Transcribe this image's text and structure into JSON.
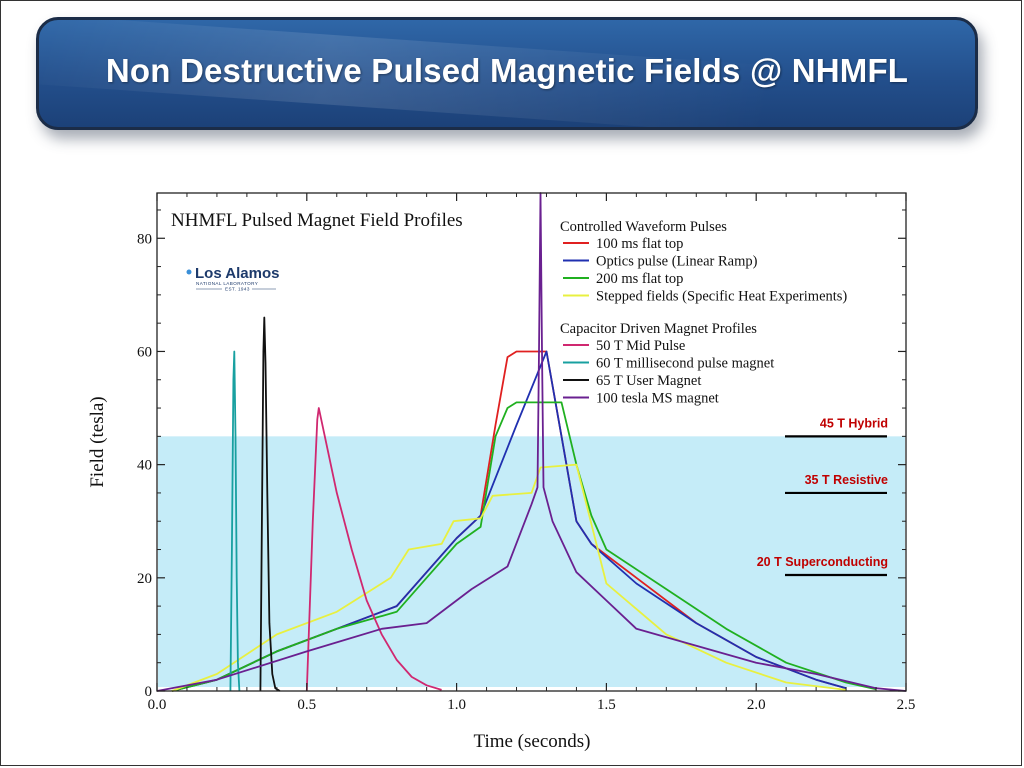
{
  "slide": {
    "title": "Non Destructive Pulsed Magnetic Fields @ NHMFL"
  },
  "logo": {
    "name": "Los Alamos",
    "subtitle": "NATIONAL LABORATORY",
    "est": "EST. 1943"
  },
  "colors": {
    "banner": "#2a5a9a",
    "shade": "#c5ecf8",
    "ref_label": "#c00000"
  },
  "chart_data": {
    "type": "line",
    "title": "NHMFL Pulsed Magnet Field Profiles",
    "xlabel": "Time (seconds)",
    "ylabel": "Field (tesla)",
    "xlim": [
      0.0,
      2.5
    ],
    "ylim": [
      0,
      88
    ],
    "xticks": [
      "0.0",
      "0.5",
      "1.0",
      "1.5",
      "2.0",
      "2.5"
    ],
    "yticks": [
      "0",
      "20",
      "40",
      "60",
      "80"
    ],
    "xtick_values": [
      0,
      0.5,
      1.0,
      1.5,
      2.0,
      2.5
    ],
    "ytick_values": [
      0,
      20,
      40,
      60,
      80
    ],
    "grid": false,
    "shaded_region": {
      "y_from": 0,
      "y_to": 45,
      "color": "#c5ecf8"
    },
    "legend_groups": [
      {
        "heading": "Controlled Waveform Pulses",
        "series_index": [
          0,
          1,
          2,
          3
        ]
      },
      {
        "heading": "Capacitor Driven Magnet Profiles",
        "series_index": [
          4,
          5,
          6,
          7
        ]
      }
    ],
    "series": [
      {
        "name": "100 ms flat top",
        "color": "#e02020",
        "points": [
          [
            0.05,
            0
          ],
          [
            0.2,
            2
          ],
          [
            0.4,
            7
          ],
          [
            0.6,
            11
          ],
          [
            0.8,
            15
          ],
          [
            0.9,
            21
          ],
          [
            1.0,
            27
          ],
          [
            1.08,
            31
          ],
          [
            1.13,
            47
          ],
          [
            1.17,
            59
          ],
          [
            1.2,
            60
          ],
          [
            1.3,
            60
          ],
          [
            1.35,
            45
          ],
          [
            1.4,
            30
          ],
          [
            1.45,
            26
          ],
          [
            1.6,
            20
          ],
          [
            1.8,
            12
          ],
          [
            2.0,
            6
          ],
          [
            2.2,
            2
          ],
          [
            2.3,
            0.5
          ]
        ]
      },
      {
        "name": "Optics pulse (Linear Ramp)",
        "color": "#2030b0",
        "points": [
          [
            0.05,
            0
          ],
          [
            0.2,
            2
          ],
          [
            0.4,
            7
          ],
          [
            0.6,
            11
          ],
          [
            0.8,
            15
          ],
          [
            0.9,
            21
          ],
          [
            1.0,
            27
          ],
          [
            1.08,
            31
          ],
          [
            1.2,
            47
          ],
          [
            1.3,
            60
          ],
          [
            1.35,
            45
          ],
          [
            1.4,
            30
          ],
          [
            1.45,
            26
          ],
          [
            1.6,
            19
          ],
          [
            1.8,
            12
          ],
          [
            2.0,
            6
          ],
          [
            2.2,
            2
          ],
          [
            2.3,
            0.5
          ]
        ]
      },
      {
        "name": "200 ms flat top",
        "color": "#20b020",
        "points": [
          [
            0.05,
            0
          ],
          [
            0.2,
            2
          ],
          [
            0.4,
            7
          ],
          [
            0.6,
            11
          ],
          [
            0.8,
            14
          ],
          [
            0.9,
            20
          ],
          [
            1.0,
            26
          ],
          [
            1.08,
            29
          ],
          [
            1.13,
            45
          ],
          [
            1.17,
            50
          ],
          [
            1.2,
            51
          ],
          [
            1.35,
            51
          ],
          [
            1.4,
            40
          ],
          [
            1.45,
            31
          ],
          [
            1.5,
            25
          ],
          [
            1.7,
            18
          ],
          [
            1.9,
            11
          ],
          [
            2.1,
            5
          ],
          [
            2.3,
            1.5
          ],
          [
            2.4,
            0.3
          ]
        ]
      },
      {
        "name": "Stepped fields (Specific Heat Experiments)",
        "color": "#e8f040",
        "points": [
          [
            0.05,
            0
          ],
          [
            0.2,
            3
          ],
          [
            0.4,
            10
          ],
          [
            0.6,
            14
          ],
          [
            0.78,
            20
          ],
          [
            0.84,
            25
          ],
          [
            0.95,
            26
          ],
          [
            0.99,
            30
          ],
          [
            1.08,
            30.5
          ],
          [
            1.12,
            34.5
          ],
          [
            1.25,
            35
          ],
          [
            1.28,
            39.5
          ],
          [
            1.4,
            40
          ],
          [
            1.5,
            19
          ],
          [
            1.7,
            10
          ],
          [
            1.9,
            5
          ],
          [
            2.1,
            1.5
          ],
          [
            2.3,
            0.2
          ]
        ]
      },
      {
        "name": "50 T Mid Pulse",
        "color": "#d02870",
        "points": [
          [
            0.5,
            0
          ],
          [
            0.52,
            30
          ],
          [
            0.535,
            48
          ],
          [
            0.54,
            50
          ],
          [
            0.56,
            45
          ],
          [
            0.6,
            35
          ],
          [
            0.65,
            25
          ],
          [
            0.7,
            16
          ],
          [
            0.75,
            10
          ],
          [
            0.8,
            5.5
          ],
          [
            0.85,
            2.5
          ],
          [
            0.9,
            1
          ],
          [
            0.95,
            0.2
          ]
        ]
      },
      {
        "name": "60 T millisecond pulse magnet",
        "color": "#18a0a0",
        "points": [
          [
            0.245,
            0
          ],
          [
            0.25,
            25
          ],
          [
            0.255,
            55
          ],
          [
            0.258,
            60
          ],
          [
            0.262,
            45
          ],
          [
            0.266,
            20
          ],
          [
            0.27,
            5
          ],
          [
            0.275,
            0
          ]
        ]
      },
      {
        "name": "65 T User Magnet",
        "color": "#111111",
        "points": [
          [
            0.345,
            0
          ],
          [
            0.35,
            30
          ],
          [
            0.355,
            60
          ],
          [
            0.358,
            66
          ],
          [
            0.362,
            58
          ],
          [
            0.368,
            35
          ],
          [
            0.375,
            12
          ],
          [
            0.385,
            3
          ],
          [
            0.395,
            0.5
          ],
          [
            0.41,
            0
          ]
        ]
      },
      {
        "name": "100 tesla MS magnet",
        "color": "#6a2090",
        "points": [
          [
            0.0,
            0
          ],
          [
            0.2,
            2
          ],
          [
            0.5,
            7
          ],
          [
            0.75,
            11
          ],
          [
            0.9,
            12
          ],
          [
            1.05,
            18
          ],
          [
            1.17,
            22
          ],
          [
            1.25,
            33
          ],
          [
            1.27,
            36
          ],
          [
            1.275,
            60
          ],
          [
            1.28,
            88
          ],
          [
            1.285,
            60
          ],
          [
            1.29,
            36
          ],
          [
            1.32,
            30
          ],
          [
            1.4,
            21
          ],
          [
            1.5,
            16
          ],
          [
            1.6,
            11
          ],
          [
            1.8,
            8
          ],
          [
            2.0,
            5
          ],
          [
            2.2,
            3
          ],
          [
            2.4,
            0.5
          ],
          [
            2.5,
            0
          ]
        ]
      }
    ],
    "reference_lines": [
      {
        "label": "45 T Hybrid",
        "y": 45
      },
      {
        "label": "35 T Resistive",
        "y": 35
      },
      {
        "label": "20 T Superconducting",
        "y": 20.5
      }
    ]
  }
}
